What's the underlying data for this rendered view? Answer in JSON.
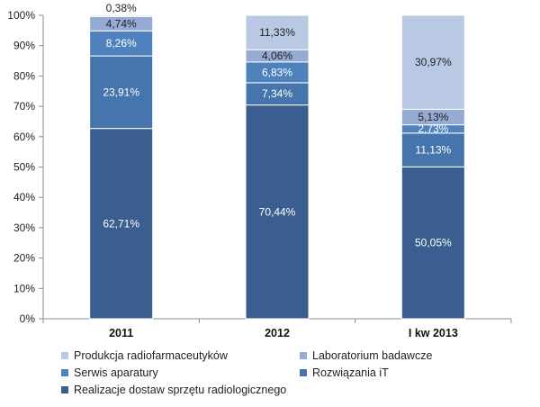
{
  "chart_data": {
    "type": "bar",
    "stacked": true,
    "normalized_100": true,
    "categories": [
      "2011",
      "2012",
      "I kw 2013"
    ],
    "series": [
      {
        "name": "Realizacje dostaw sprzętu radiologicznego",
        "color": "#3a5e8f",
        "values": [
          62.71,
          70.44,
          50.05
        ],
        "labels": [
          "62,71%",
          "70,44%",
          "50,05%"
        ]
      },
      {
        "name": "Rozwiązania iT",
        "color": "#4674ac",
        "values": [
          23.91,
          7.34,
          11.13
        ],
        "labels": [
          "23,91%",
          "7,34%",
          "11,13%"
        ]
      },
      {
        "name": "Serwis aparatury",
        "color": "#4f81bd",
        "values": [
          8.26,
          6.83,
          2.73
        ],
        "labels": [
          "8,26%",
          "6,83%",
          "2,73%"
        ]
      },
      {
        "name": "Laboratorium badawcze",
        "color": "#95abd3",
        "values": [
          4.74,
          4.06,
          5.13
        ],
        "labels": [
          "4,74%",
          "4,06%",
          "5,13%"
        ]
      },
      {
        "name": "Produkcja radiofarmaceutyków",
        "color": "#b9c8e3",
        "values": [
          0.38,
          11.33,
          30.97
        ],
        "labels": [
          "0,38%",
          "11,33%",
          "30,97%"
        ]
      }
    ],
    "y_ticks": [
      "0%",
      "10%",
      "20%",
      "30%",
      "40%",
      "50%",
      "60%",
      "70%",
      "80%",
      "90%",
      "100%"
    ],
    "ylim": [
      0,
      100
    ],
    "grid": false,
    "legend_position": "bottom",
    "legend_order": [
      "Produkcja radiofarmaceutyków",
      "Laboratorium badawcze",
      "Serwis aparatury",
      "Rozwiązania iT",
      "Realizacje dostaw sprzętu radiologicznego"
    ]
  }
}
